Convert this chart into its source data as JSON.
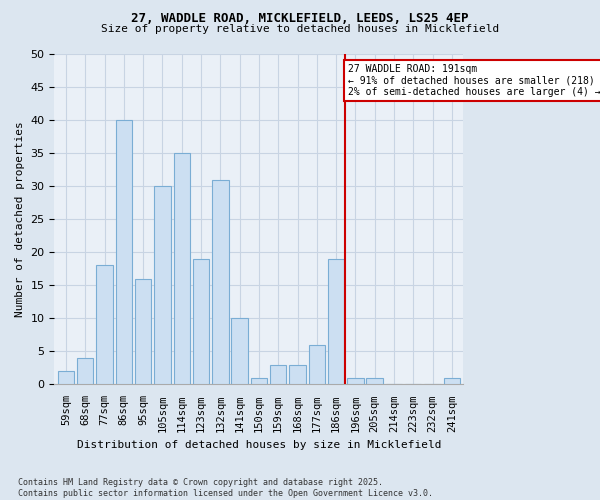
{
  "title1": "27, WADDLE ROAD, MICKLEFIELD, LEEDS, LS25 4EP",
  "title2": "Size of property relative to detached houses in Micklefield",
  "xlabel": "Distribution of detached houses by size in Micklefield",
  "ylabel": "Number of detached properties",
  "categories": [
    "59sqm",
    "68sqm",
    "77sqm",
    "86sqm",
    "95sqm",
    "105sqm",
    "114sqm",
    "123sqm",
    "132sqm",
    "141sqm",
    "150sqm",
    "159sqm",
    "168sqm",
    "177sqm",
    "186sqm",
    "196sqm",
    "205sqm",
    "214sqm",
    "223sqm",
    "232sqm",
    "241sqm"
  ],
  "values": [
    2,
    4,
    18,
    40,
    16,
    30,
    35,
    19,
    31,
    10,
    1,
    3,
    3,
    6,
    19,
    1,
    1,
    0,
    0,
    0,
    1
  ],
  "bar_color": "#ccdff2",
  "bar_edge_color": "#7aadd4",
  "grid_color": "#c8d4e3",
  "annotation_text": "27 WADDLE ROAD: 191sqm\n← 91% of detached houses are smaller (218)\n2% of semi-detached houses are larger (4) →",
  "annotation_box_color": "#ffffff",
  "annotation_border_color": "#cc0000",
  "vline_color": "#cc0000",
  "vline_x_category": 14,
  "ylim": [
    0,
    50
  ],
  "yticks": [
    0,
    5,
    10,
    15,
    20,
    25,
    30,
    35,
    40,
    45,
    50
  ],
  "footer1": "Contains HM Land Registry data © Crown copyright and database right 2025.",
  "footer2": "Contains public sector information licensed under the Open Government Licence v3.0.",
  "bg_color": "#dce6f0",
  "plot_bg_color": "#eaf0f7"
}
